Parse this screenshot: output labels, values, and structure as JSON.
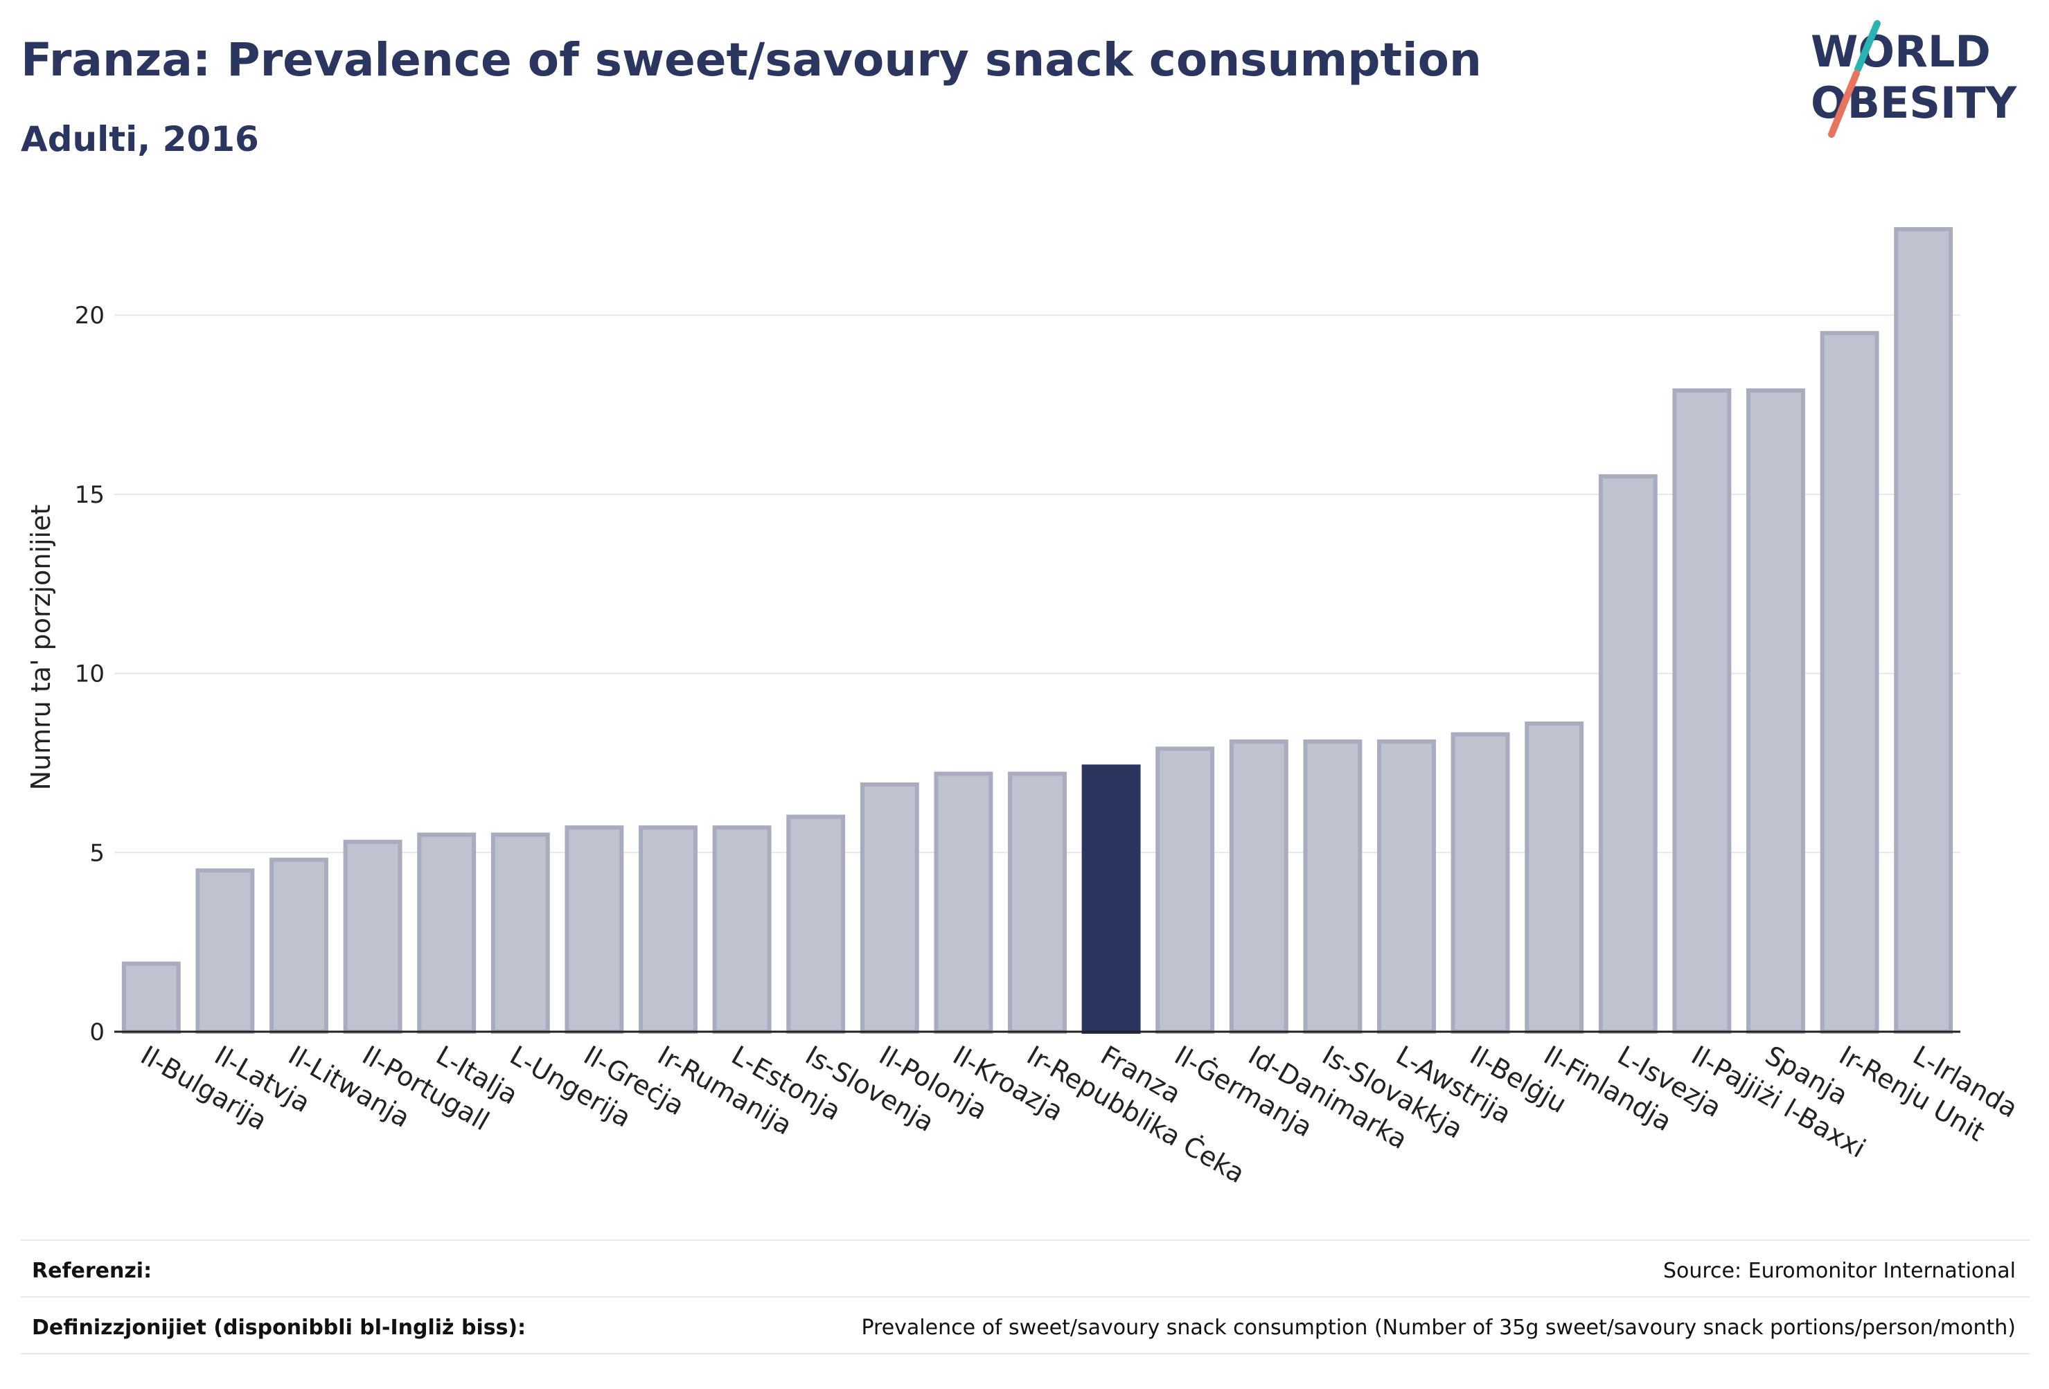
{
  "header": {
    "title": "Franza: Prevalence of sweet/savoury snack consumption",
    "subtitle": "Adulti, 2016"
  },
  "logo": {
    "line1": "WORLD",
    "line2": "OBESITY",
    "colors": {
      "text": "#2a3560",
      "slash_top": "#2bb3b1",
      "slash_bottom": "#e8735f"
    }
  },
  "colors": {
    "bar": "#bfc2cf",
    "bar_stroke": "#a7acbe",
    "highlight": "#2a3560",
    "grid": "#e6e7ec",
    "axis": "#222222"
  },
  "chart_data": {
    "type": "bar",
    "title": "",
    "xlabel": "",
    "ylabel": "Numru ta' porzjonijiet",
    "ylim": [
      0,
      23
    ],
    "yticks": [
      0,
      5,
      10,
      15,
      20
    ],
    "grid": true,
    "highlight": "Franza",
    "categories": [
      "Il-Bulgarija",
      "Il-Latvja",
      "Il-Litwanja",
      "Il-Portugall",
      "L-Italja",
      "L-Ungerija",
      "Il-Greċja",
      "Ir-Rumanija",
      "L-Estonja",
      "Is-Slovenja",
      "Il-Polonja",
      "Il-Kroazja",
      "Ir-Repubblika Ċeka",
      "Franza",
      "Il-Ġermanja",
      "Id-Danimarka",
      "Is-Slovakkja",
      "L-Awstrija",
      "Il-Belġju",
      "Il-Finlandja",
      "L-Isvezja",
      "Il-Pajjiżi l-Baxxi",
      "Spanja",
      "Ir-Renju Unit",
      "L-Irlanda"
    ],
    "values": [
      1.9,
      4.5,
      4.8,
      5.3,
      5.5,
      5.5,
      5.7,
      5.7,
      5.7,
      6.0,
      6.9,
      7.2,
      7.2,
      7.4,
      7.9,
      8.1,
      8.1,
      8.1,
      8.3,
      8.6,
      15.5,
      17.9,
      17.9,
      19.5,
      22.4
    ]
  },
  "footer": {
    "references_label": "Referenzi:",
    "references_value": "Source: Euromonitor International",
    "definitions_label": "Definizzjonijiet (disponibbli bl-Ingliż biss):",
    "definitions_value": "Prevalence of sweet/savoury snack consumption (Number of 35g sweet/savoury snack portions/person/month)"
  }
}
